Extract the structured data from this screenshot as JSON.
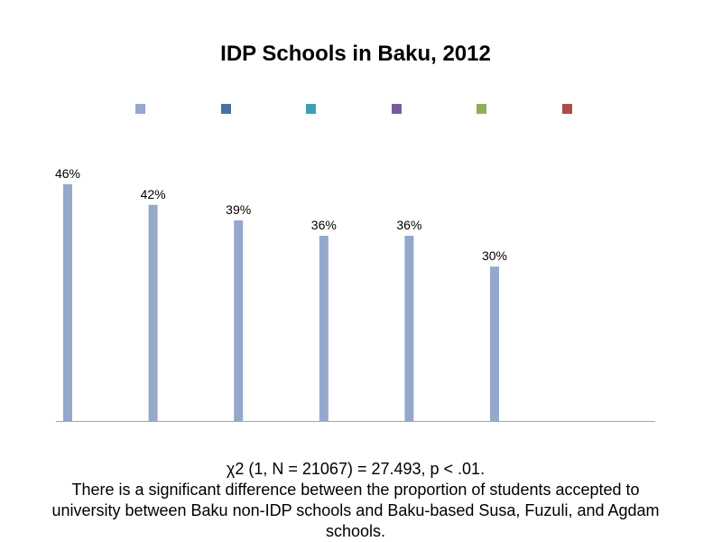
{
  "chart_data": {
    "type": "bar",
    "title": "IDP Schools in Baku, 2012",
    "xlabel": "",
    "ylabel": "",
    "ylim": [
      0,
      50
    ],
    "grid": false,
    "legend_position": "top",
    "value_format": "percent",
    "series": [
      {
        "color": "#94a8cc",
        "values": [
          46
        ]
      },
      {
        "color": "#4a6fa5",
        "values": [
          42
        ]
      },
      {
        "color": "#3ea0b3",
        "values": [
          39
        ]
      },
      {
        "color": "#7a5c99",
        "values": [
          36
        ]
      },
      {
        "color": "#8faf55",
        "values": [
          36
        ]
      },
      {
        "color": "#b04a4a",
        "values": [
          30
        ]
      }
    ],
    "bar_values": [
      46,
      42,
      39,
      36,
      36,
      30
    ],
    "bar_color": "#94a8cc",
    "data_labels": [
      "46%",
      "42%",
      "39%",
      "36%",
      "36%",
      "30%"
    ]
  },
  "caption": {
    "line1": "χ2 (1, N = 21067) = 27.493, p < .01.",
    "line2": "There is a significant difference between the proportion of students accepted to university between Baku non-IDP schools and Baku-based Susa, Fuzuli, and Agdam schools."
  },
  "colors": {
    "axis": "#a6a6a6",
    "text": "#000000",
    "background": "#ffffff"
  }
}
